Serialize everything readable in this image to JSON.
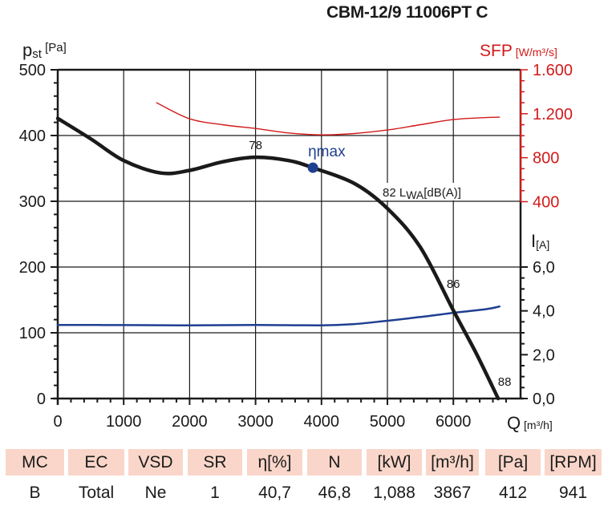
{
  "header": {
    "title": "CBM-12/9 11006PT C"
  },
  "colors": {
    "pressure": "#1a1a1a",
    "sfp": "#d21a1a",
    "current": "#1f3f91",
    "grid": "#1a1a1a",
    "table_header_bg": "#f9d6c9"
  },
  "chart_data": {
    "type": "line",
    "title": "CBM-12/9 11006PT C",
    "xlabel": "Q",
    "xunit": "[m³/h]",
    "xlim": [
      0,
      6700
    ],
    "xticks": [
      0,
      1000,
      2000,
      3000,
      4000,
      5000,
      6000
    ],
    "xtick_labels": [
      "0",
      "1000",
      "2000",
      "3000",
      "4000",
      "5000",
      "6000"
    ],
    "grid": true,
    "axes": {
      "pressure": {
        "label": "p",
        "sub": "st",
        "unit": "[Pa]",
        "ylim": [
          0,
          500
        ],
        "ticks": [
          0,
          100,
          200,
          300,
          400,
          500
        ],
        "tick_labels": [
          "0",
          "100",
          "200",
          "300",
          "400",
          "500"
        ],
        "side": "left"
      },
      "sfp": {
        "label": "SFP",
        "unit": "[W/m³/s]",
        "ylim": [
          400,
          1600
        ],
        "ticks": [
          400,
          800,
          1200,
          1600
        ],
        "tick_labels": [
          "400",
          "800",
          "1.200",
          "1.600"
        ],
        "side": "right"
      },
      "current": {
        "label": "I",
        "unit": "[A]",
        "ylim": [
          0,
          6
        ],
        "ticks": [
          0,
          2,
          4,
          6
        ],
        "tick_labels": [
          "0,0",
          "2,0",
          "4,0",
          "6,0"
        ],
        "side": "right"
      }
    },
    "series": [
      {
        "name": "Static pressure",
        "axis": "pressure",
        "x": [
          0,
          500,
          1000,
          1560,
          2000,
          2500,
          3000,
          3500,
          3870,
          4500,
          5000,
          5500,
          6000,
          6350,
          6680
        ],
        "values": [
          426,
          395,
          362,
          343,
          347,
          360,
          367,
          362,
          351,
          327,
          289,
          230,
          134,
          68,
          0
        ]
      },
      {
        "name": "SFP",
        "axis": "sfp",
        "x": [
          1500,
          2000,
          2500,
          3000,
          3500,
          4000,
          4500,
          5000,
          5500,
          6000,
          6500,
          6700
        ],
        "values": [
          1300,
          1154,
          1100,
          1066,
          1025,
          1008,
          1020,
          1052,
          1100,
          1147,
          1165,
          1169
        ]
      },
      {
        "name": "Current",
        "axis": "current",
        "x": [
          0,
          1000,
          2000,
          3000,
          4000,
          4500,
          5000,
          5500,
          6000,
          6500,
          6700
        ],
        "values": [
          3.36,
          3.35,
          3.34,
          3.36,
          3.34,
          3.4,
          3.55,
          3.72,
          3.91,
          4.08,
          4.2
        ]
      }
    ],
    "annotations": [
      {
        "text": "78",
        "x": 3000,
        "y": 367
      },
      {
        "text": "ηmax",
        "x": 3870,
        "y": 351,
        "marker": true
      },
      {
        "text": "82 L",
        "sub": "WA",
        "suffix": "[dB(A)]",
        "x": 5000,
        "y": 289
      },
      {
        "text": "86",
        "x": 6000,
        "y": 134
      },
      {
        "text": "88",
        "x": 6680,
        "y": 0
      }
    ]
  },
  "table": {
    "headers": [
      "MC",
      "EC",
      "VSD",
      "SR",
      "η[%]",
      "N",
      "[kW]",
      "[m³/h]",
      "[Pa]",
      "[RPM]"
    ],
    "values": [
      "B",
      "Total",
      "Ne",
      "1",
      "40,7",
      "46,8",
      "1,088",
      "3867",
      "412",
      "941"
    ]
  }
}
